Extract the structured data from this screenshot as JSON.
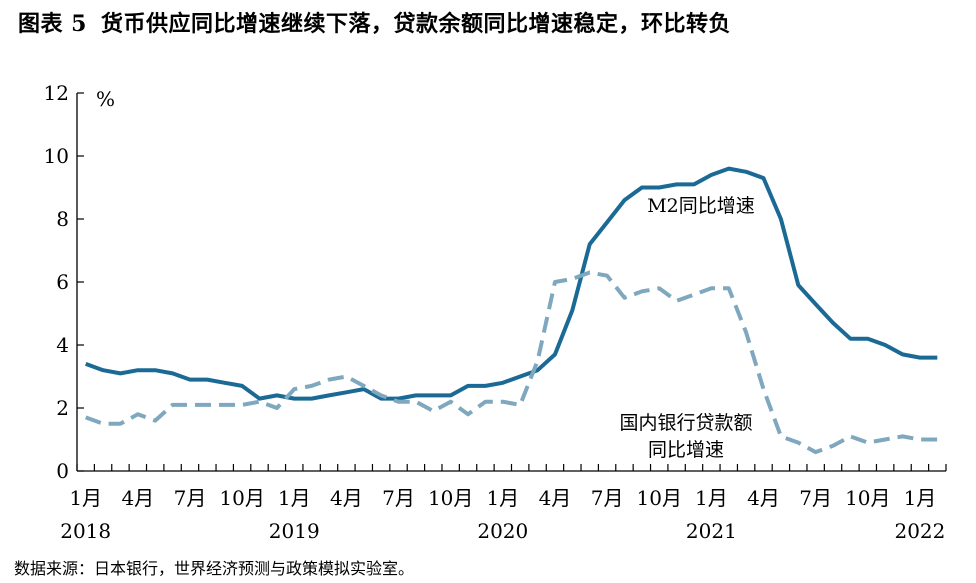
{
  "header": {
    "figure_label": "图表 5",
    "title": "货币供应同比增速继续下落，贷款余额同比增速稳定，环比转负"
  },
  "source": "数据来源：日本银行，世界经济预测与政策模拟实验室。",
  "colors": {
    "m2": "#1a6a95",
    "loans": "#7fa8bf",
    "axis": "#000000"
  },
  "chart_data": {
    "type": "line",
    "title": "货币供应同比增速继续下落，贷款余额同比增速稳定，环比转负",
    "ylabel": "%",
    "ylim": [
      0,
      12
    ],
    "yticks": [
      0,
      2,
      4,
      6,
      8,
      10,
      12
    ],
    "grid": false,
    "x": [
      "2018-01",
      "2018-02",
      "2018-03",
      "2018-04",
      "2018-05",
      "2018-06",
      "2018-07",
      "2018-08",
      "2018-09",
      "2018-10",
      "2018-11",
      "2018-12",
      "2019-01",
      "2019-02",
      "2019-03",
      "2019-04",
      "2019-05",
      "2019-06",
      "2019-07",
      "2019-08",
      "2019-09",
      "2019-10",
      "2019-11",
      "2019-12",
      "2020-01",
      "2020-02",
      "2020-03",
      "2020-04",
      "2020-05",
      "2020-06",
      "2020-07",
      "2020-08",
      "2020-09",
      "2020-10",
      "2020-11",
      "2020-12",
      "2021-01",
      "2021-02",
      "2021-03",
      "2021-04",
      "2021-05",
      "2021-06",
      "2021-07",
      "2021-08",
      "2021-09",
      "2021-10",
      "2021-11",
      "2021-12",
      "2022-01",
      "2022-02"
    ],
    "xtick_labels": [
      {
        "month": "1月",
        "year": "2018",
        "x": "2018-01"
      },
      {
        "month": "4月",
        "x": "2018-04"
      },
      {
        "month": "7月",
        "x": "2018-07"
      },
      {
        "month": "10月",
        "x": "2018-10"
      },
      {
        "month": "1月",
        "year": "2019",
        "x": "2019-01"
      },
      {
        "month": "4月",
        "x": "2019-04"
      },
      {
        "month": "7月",
        "x": "2019-07"
      },
      {
        "month": "10月",
        "x": "2019-10"
      },
      {
        "month": "1月",
        "year": "2020",
        "x": "2020-01"
      },
      {
        "month": "4月",
        "x": "2020-04"
      },
      {
        "month": "7月",
        "x": "2020-07"
      },
      {
        "month": "10月",
        "x": "2020-10"
      },
      {
        "month": "1月",
        "year": "2021",
        "x": "2021-01"
      },
      {
        "month": "4月",
        "x": "2021-04"
      },
      {
        "month": "7月",
        "x": "2021-07"
      },
      {
        "month": "10月",
        "x": "2021-10"
      },
      {
        "month": "1月",
        "year": "2022",
        "x": "2022-01"
      }
    ],
    "series": [
      {
        "name": "M2同比增速",
        "style": "solid",
        "values": [
          3.4,
          3.2,
          3.1,
          3.2,
          3.2,
          3.1,
          2.9,
          2.9,
          2.8,
          2.7,
          2.3,
          2.4,
          2.3,
          2.3,
          2.4,
          2.5,
          2.6,
          2.3,
          2.3,
          2.4,
          2.4,
          2.4,
          2.7,
          2.7,
          2.8,
          3.0,
          3.2,
          3.7,
          5.1,
          7.2,
          7.9,
          8.6,
          9.0,
          9.0,
          9.1,
          9.1,
          9.4,
          9.6,
          9.5,
          9.3,
          8.0,
          5.9,
          5.3,
          4.7,
          4.2,
          4.2,
          4.0,
          3.7,
          3.6,
          3.6
        ]
      },
      {
        "name": "国内银行贷款额同比增速",
        "style": "dashed",
        "values": [
          1.7,
          1.5,
          1.5,
          1.8,
          1.6,
          2.1,
          2.1,
          2.1,
          2.1,
          2.1,
          2.2,
          2.0,
          2.6,
          2.7,
          2.9,
          3.0,
          2.7,
          2.4,
          2.2,
          2.2,
          1.9,
          2.2,
          1.8,
          2.2,
          2.2,
          2.1,
          3.5,
          6.0,
          6.1,
          6.3,
          6.2,
          5.5,
          5.7,
          5.8,
          5.4,
          5.6,
          5.8,
          5.8,
          4.4,
          2.6,
          1.1,
          0.9,
          0.6,
          0.8,
          1.1,
          0.9,
          1.0,
          1.1,
          1.0,
          1.0
        ]
      }
    ],
    "annotations": [
      {
        "text": "M2同比增速",
        "series": "M2同比增速"
      },
      {
        "text": "国内银行贷款额",
        "series": "国内银行贷款额同比增速"
      },
      {
        "text": "同比增速",
        "series": "国内银行贷款额同比增速"
      }
    ]
  }
}
